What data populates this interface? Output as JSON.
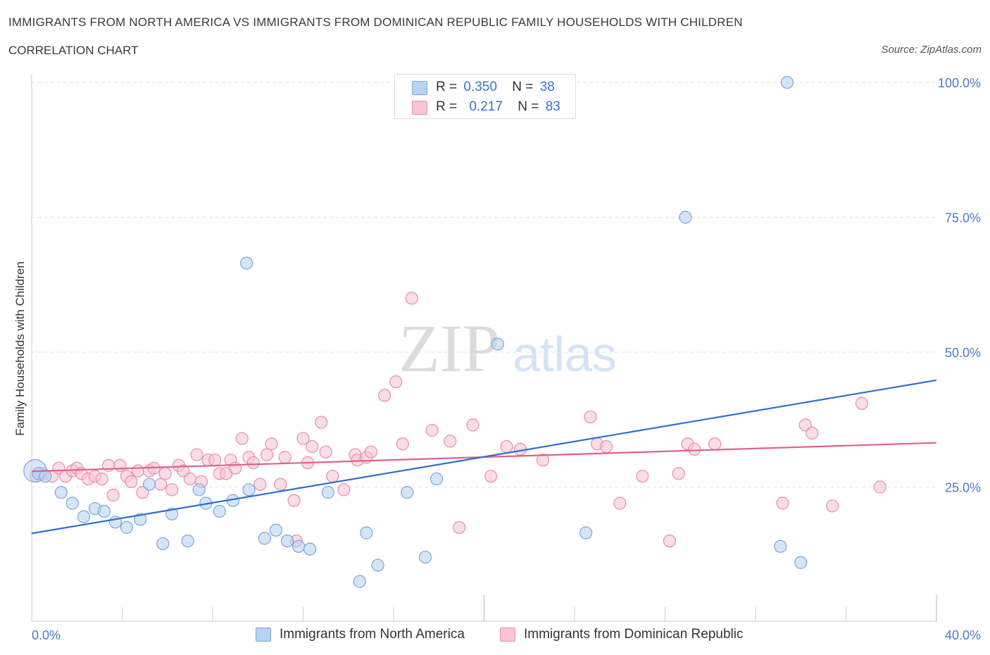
{
  "title": "IMMIGRANTS FROM NORTH AMERICA VS IMMIGRANTS FROM DOMINICAN REPUBLIC FAMILY HOUSEHOLDS WITH CHILDREN",
  "subtitle": "CORRELATION CHART",
  "source": "Source: ZipAtlas.com",
  "watermark": {
    "zip": "ZIP",
    "atlas": "atlas"
  },
  "legend": {
    "rows": [
      {
        "r_label": "R =",
        "r_value": "0.350",
        "n_label": "N =",
        "n_value": "38"
      },
      {
        "r_label": "R =",
        "r_value": "0.217",
        "n_label": "N =",
        "n_value": "83"
      }
    ]
  },
  "bottom_legend": {
    "series1": "Immigrants from North America",
    "series2": "Immigrants from Dominican Republic"
  },
  "colors": {
    "series1_fill": "#b9d3f3",
    "series1_stroke": "#7aa6dd",
    "series1_line": "#2f6fd0",
    "series2_fill": "#f8c6d6",
    "series2_stroke": "#e98cab",
    "series2_line": "#e0608e",
    "grid": "#e3e3e3",
    "axis": "#cccccc",
    "tick_text": "#4a7cc7"
  },
  "chart_data": {
    "type": "scatter",
    "title": "IMMIGRANTS FROM NORTH AMERICA VS IMMIGRANTS FROM DOMINICAN REPUBLIC FAMILY HOUSEHOLDS WITH CHILDREN",
    "xlabel": "",
    "ylabel": "Family Households with Children",
    "xlim": [
      0,
      40
    ],
    "ylim": [
      0,
      100
    ],
    "x_tick_labels": [
      "0.0%",
      "40.0%"
    ],
    "y_ticks": [
      25,
      50,
      75,
      100
    ],
    "y_tick_labels": [
      "25.0%",
      "50.0%",
      "75.0%",
      "100.0%"
    ],
    "series": [
      {
        "name": "Immigrants from North America",
        "R": 0.35,
        "N": 38,
        "trend": {
          "x": [
            0,
            40
          ],
          "y": [
            16.4,
            44.8
          ]
        },
        "points": [
          [
            0.3,
            27.5
          ],
          [
            0.6,
            27.0
          ],
          [
            1.3,
            24.0
          ],
          [
            1.8,
            22.0
          ],
          [
            2.3,
            19.5
          ],
          [
            2.8,
            21.0
          ],
          [
            3.2,
            20.5
          ],
          [
            3.7,
            18.5
          ],
          [
            4.2,
            17.5
          ],
          [
            4.8,
            19.0
          ],
          [
            5.2,
            25.5
          ],
          [
            5.8,
            14.5
          ],
          [
            6.2,
            20.0
          ],
          [
            6.9,
            15.0
          ],
          [
            7.4,
            24.5
          ],
          [
            7.7,
            22.0
          ],
          [
            8.3,
            20.5
          ],
          [
            8.9,
            22.5
          ],
          [
            9.5,
            66.5
          ],
          [
            9.6,
            24.5
          ],
          [
            10.3,
            15.5
          ],
          [
            10.8,
            17.0
          ],
          [
            11.3,
            15.0
          ],
          [
            11.8,
            14.0
          ],
          [
            12.3,
            13.5
          ],
          [
            13.1,
            24.0
          ],
          [
            14.5,
            7.5
          ],
          [
            14.8,
            16.5
          ],
          [
            15.3,
            10.5
          ],
          [
            16.6,
            24.0
          ],
          [
            17.4,
            12.0
          ],
          [
            17.9,
            26.5
          ],
          [
            20.6,
            51.5
          ],
          [
            24.5,
            16.5
          ],
          [
            28.9,
            75.0
          ],
          [
            33.1,
            14.0
          ],
          [
            33.4,
            100.0
          ],
          [
            34.0,
            11.0
          ]
        ]
      },
      {
        "name": "Immigrants from Dominican Republic",
        "R": 0.217,
        "N": 83,
        "trend": {
          "x": [
            0,
            40
          ],
          "y": [
            27.9,
            33.2
          ]
        },
        "points": [
          [
            0.2,
            27.0
          ],
          [
            0.5,
            27.5
          ],
          [
            0.9,
            27.0
          ],
          [
            1.2,
            28.5
          ],
          [
            1.5,
            27.0
          ],
          [
            1.8,
            28.0
          ],
          [
            2.0,
            28.5
          ],
          [
            2.2,
            27.5
          ],
          [
            2.5,
            26.5
          ],
          [
            2.8,
            27.0
          ],
          [
            3.1,
            26.5
          ],
          [
            3.4,
            29.0
          ],
          [
            3.6,
            23.5
          ],
          [
            3.9,
            29.0
          ],
          [
            4.2,
            27.0
          ],
          [
            4.4,
            26.0
          ],
          [
            4.7,
            28.0
          ],
          [
            4.9,
            24.0
          ],
          [
            5.2,
            28.0
          ],
          [
            5.4,
            28.5
          ],
          [
            5.7,
            25.5
          ],
          [
            5.9,
            27.5
          ],
          [
            6.2,
            24.5
          ],
          [
            6.5,
            29.0
          ],
          [
            6.7,
            28.0
          ],
          [
            7.0,
            26.5
          ],
          [
            7.3,
            31.0
          ],
          [
            7.5,
            26.0
          ],
          [
            7.8,
            30.0
          ],
          [
            8.1,
            30.0
          ],
          [
            8.3,
            27.5
          ],
          [
            8.6,
            27.5
          ],
          [
            8.8,
            30.0
          ],
          [
            9.0,
            28.5
          ],
          [
            9.3,
            34.0
          ],
          [
            9.6,
            30.5
          ],
          [
            9.8,
            29.5
          ],
          [
            10.1,
            25.5
          ],
          [
            10.4,
            31.0
          ],
          [
            10.6,
            33.0
          ],
          [
            11.0,
            25.5
          ],
          [
            11.2,
            30.5
          ],
          [
            11.6,
            22.5
          ],
          [
            11.7,
            15.0
          ],
          [
            12.0,
            34.0
          ],
          [
            12.2,
            29.5
          ],
          [
            12.4,
            32.5
          ],
          [
            12.8,
            37.0
          ],
          [
            13.0,
            31.5
          ],
          [
            13.3,
            27.0
          ],
          [
            13.8,
            24.5
          ],
          [
            14.3,
            31.0
          ],
          [
            14.4,
            30.0
          ],
          [
            14.8,
            30.5
          ],
          [
            15.0,
            31.5
          ],
          [
            15.6,
            42.0
          ],
          [
            16.1,
            44.5
          ],
          [
            16.4,
            33.0
          ],
          [
            16.8,
            60.0
          ],
          [
            17.7,
            35.5
          ],
          [
            18.5,
            33.5
          ],
          [
            18.9,
            17.5
          ],
          [
            19.5,
            36.5
          ],
          [
            20.3,
            27.0
          ],
          [
            21.0,
            32.5
          ],
          [
            21.6,
            32.0
          ],
          [
            22.6,
            30.0
          ],
          [
            24.7,
            38.0
          ],
          [
            25.0,
            33.0
          ],
          [
            25.4,
            32.5
          ],
          [
            26.0,
            22.0
          ],
          [
            27.0,
            27.0
          ],
          [
            28.2,
            15.0
          ],
          [
            28.6,
            27.5
          ],
          [
            29.0,
            33.0
          ],
          [
            29.3,
            32.0
          ],
          [
            30.2,
            33.0
          ],
          [
            33.2,
            22.0
          ],
          [
            34.2,
            36.5
          ],
          [
            34.5,
            35.0
          ],
          [
            35.4,
            21.5
          ],
          [
            36.7,
            40.5
          ],
          [
            37.5,
            25.0
          ]
        ]
      }
    ]
  }
}
